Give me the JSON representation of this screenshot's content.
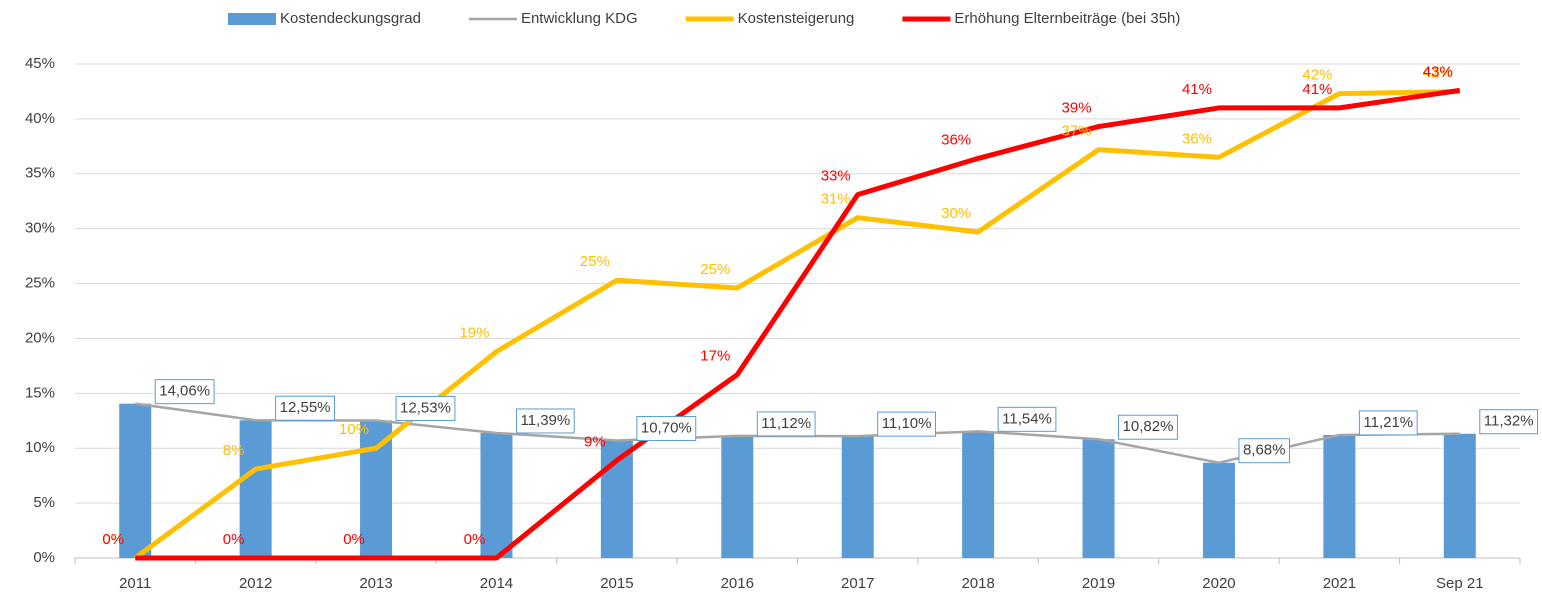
{
  "chart_data": {
    "type": "bar_line",
    "categories": [
      "2011",
      "2012",
      "2013",
      "2014",
      "2015",
      "2016",
      "2017",
      "2018",
      "2019",
      "2020",
      "2021",
      "Sep 21"
    ],
    "series": [
      {
        "name": "Kostendeckungsgrad",
        "type": "bar",
        "color": "#5b9bd5",
        "values": [
          14.06,
          12.55,
          12.53,
          11.39,
          10.7,
          11.12,
          11.1,
          11.54,
          10.82,
          8.68,
          11.21,
          11.32
        ],
        "value_labels": [
          "14,06%",
          "12,55%",
          "12,53%",
          "11,39%",
          "10,70%",
          "11,12%",
          "11,10%",
          "11,54%",
          "10,82%",
          "8,68%",
          "11,21%",
          "11,32%"
        ]
      },
      {
        "name": "Entwicklung KDG",
        "type": "line",
        "color": "#a5a5a5",
        "values": [
          14.06,
          12.55,
          12.53,
          11.39,
          10.7,
          11.12,
          11.1,
          11.54,
          10.82,
          8.68,
          11.21,
          11.32
        ]
      },
      {
        "name": "Kostensteigerung",
        "type": "line",
        "color": "#ffc000",
        "values": [
          0,
          8.1,
          10.0,
          18.8,
          25.3,
          24.6,
          31.0,
          29.7,
          37.2,
          36.5,
          42.3,
          42.5
        ],
        "value_labels": [
          "0%",
          "8%",
          "10%",
          "19%",
          "25%",
          "25%",
          "31%",
          "30%",
          "37%",
          "36%",
          "42%",
          "42%"
        ]
      },
      {
        "name": "Erhöhung Elternbeiträge (bei 35h)",
        "type": "line",
        "color": "#ff0000",
        "values": [
          0,
          0,
          0,
          0,
          8.9,
          16.7,
          33.1,
          36.4,
          39.3,
          41.0,
          41.0,
          42.6
        ],
        "value_labels": [
          "0%",
          "0%",
          "0%",
          "0%",
          "9%",
          "17%",
          "33%",
          "36%",
          "39%",
          "41%",
          "41%",
          "43%"
        ]
      }
    ],
    "ylim": [
      0,
      45
    ],
    "yticks": [
      {
        "value": 0,
        "label": "0%"
      },
      {
        "value": 5,
        "label": "5%"
      },
      {
        "value": 10,
        "label": "10%"
      },
      {
        "value": 15,
        "label": "15%"
      },
      {
        "value": 20,
        "label": "20%"
      },
      {
        "value": 25,
        "label": "25%"
      },
      {
        "value": 30,
        "label": "30%"
      },
      {
        "value": 35,
        "label": "35%"
      },
      {
        "value": 40,
        "label": "40%"
      },
      {
        "value": 45,
        "label": "45%"
      }
    ],
    "grid": true,
    "legend": "top"
  }
}
